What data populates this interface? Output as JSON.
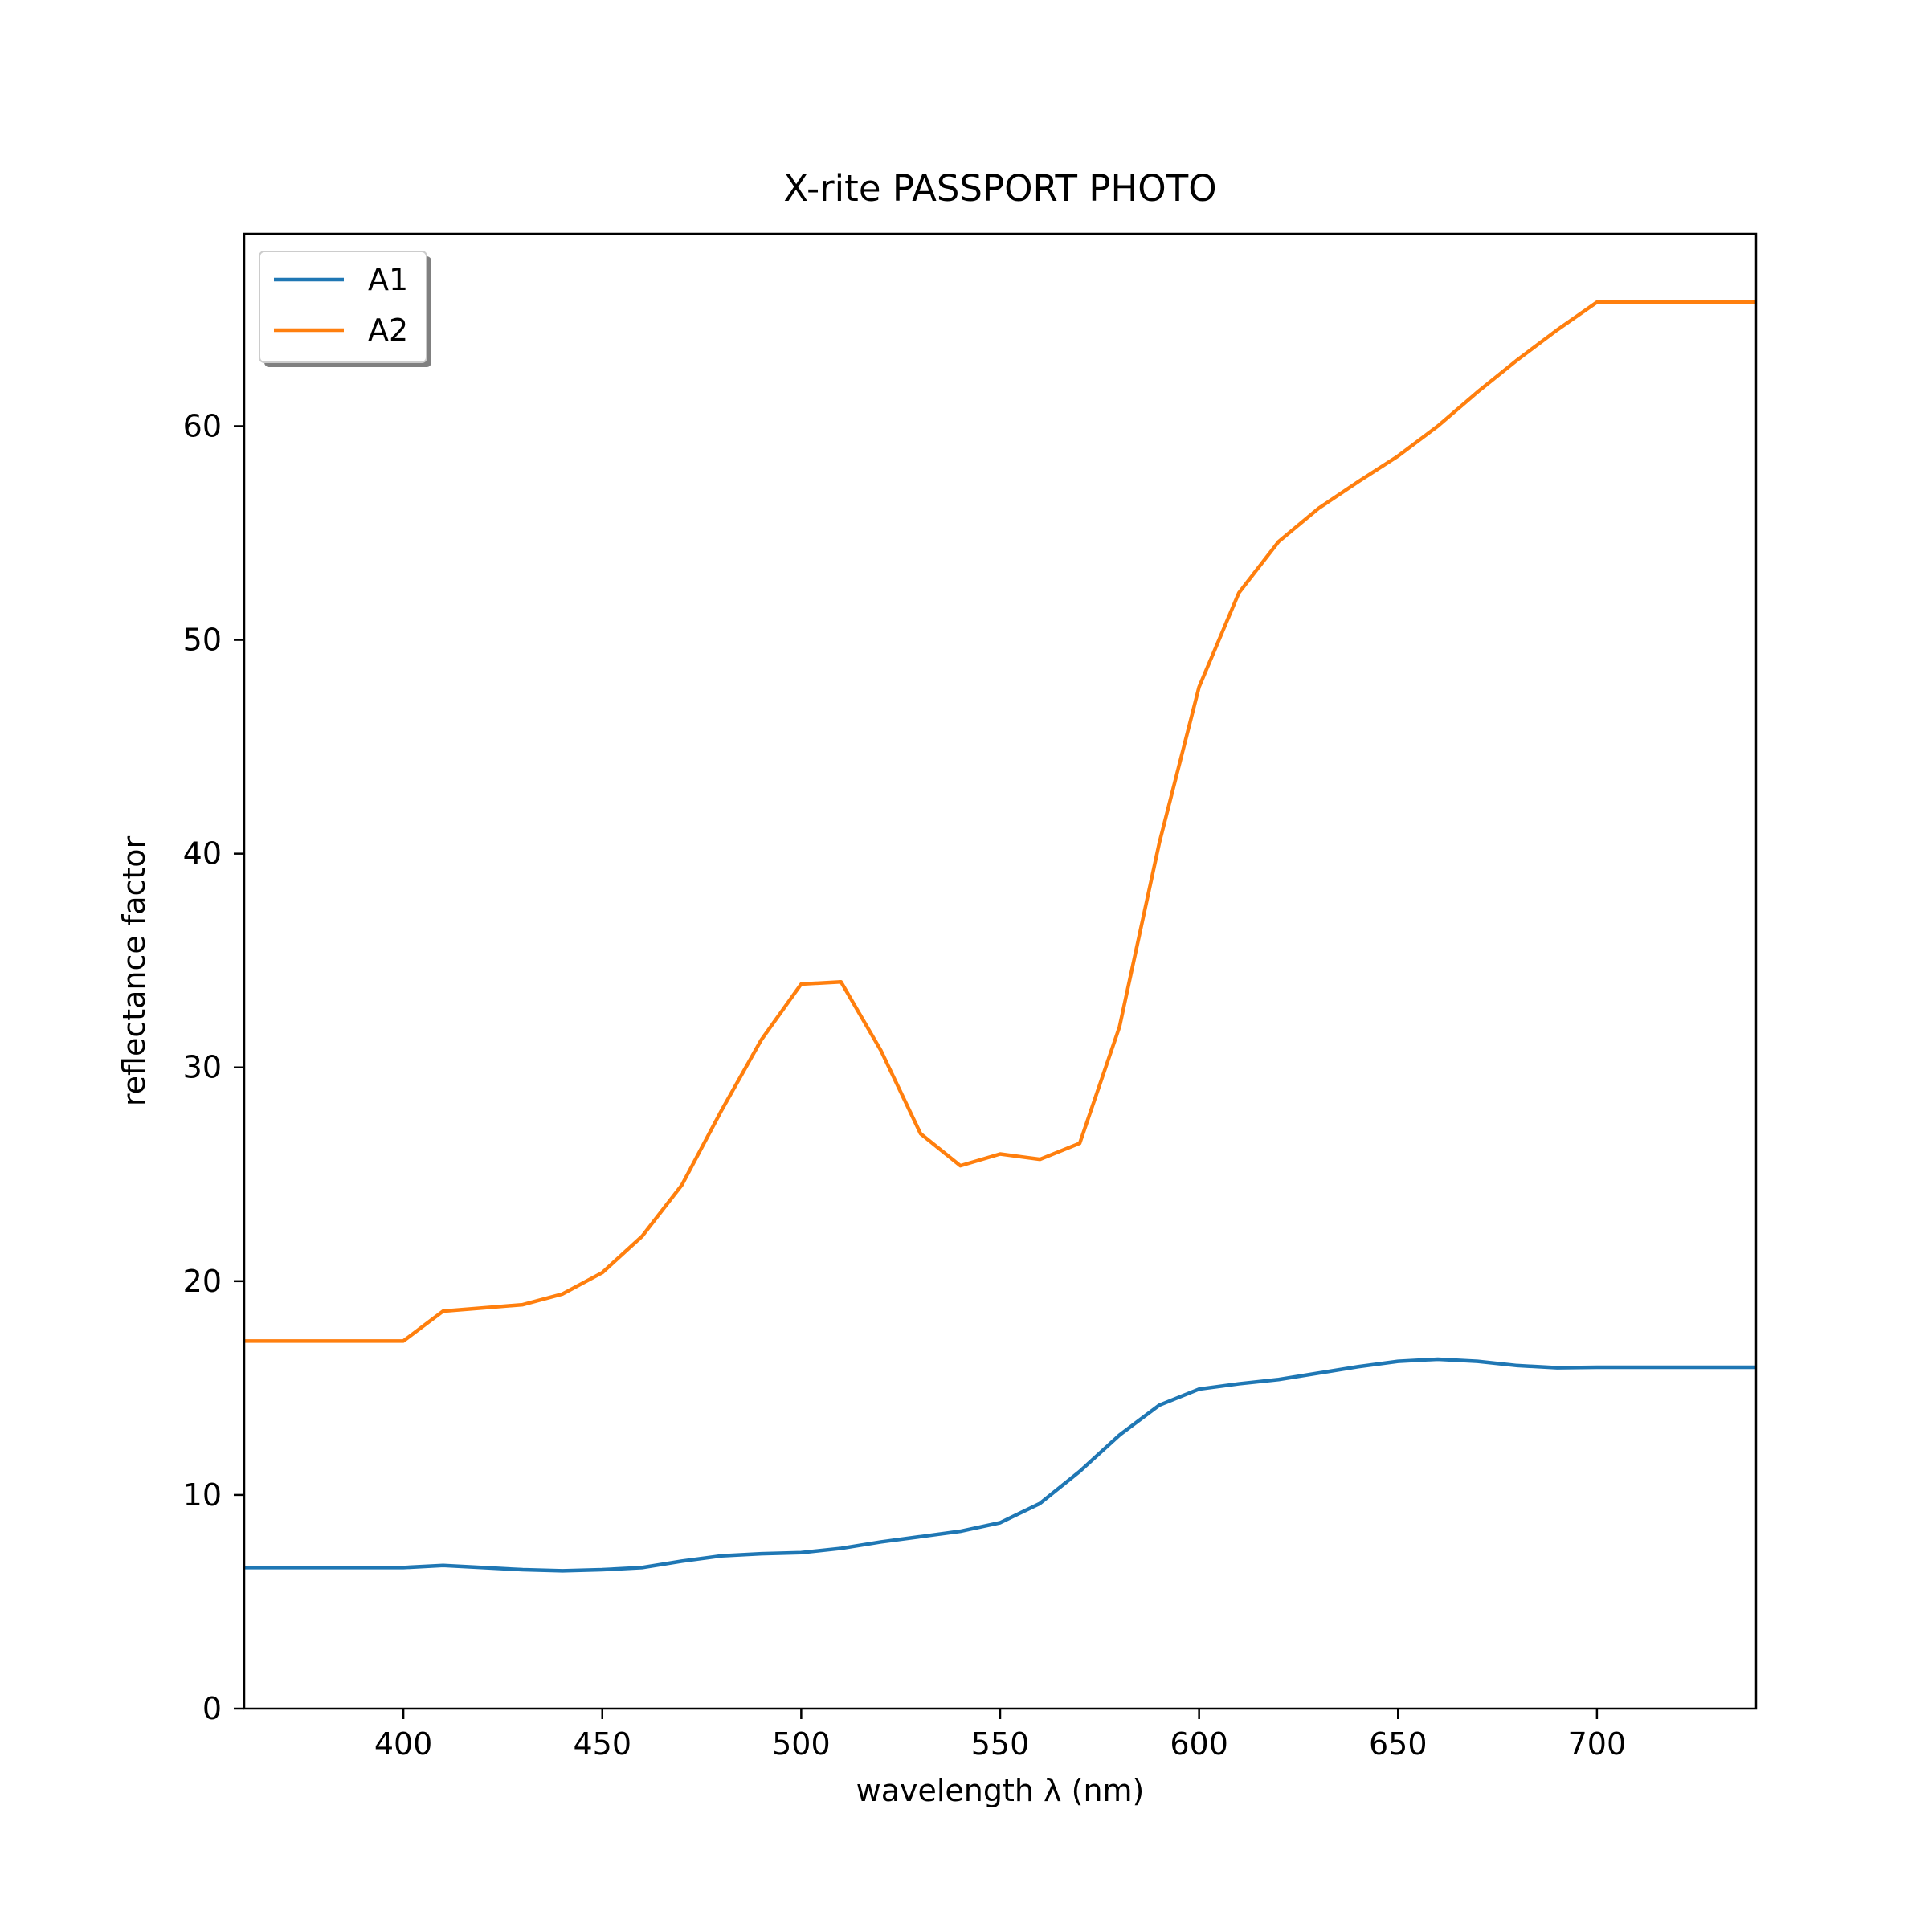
{
  "chart_data": {
    "type": "line",
    "title": "X-rite PASSPORT PHOTO",
    "xlabel": "wavelength λ (nm)",
    "ylabel": "reflectance factor",
    "xlim": [
      360,
      740
    ],
    "ylim": [
      0,
      69
    ],
    "xticks": [
      400,
      450,
      500,
      550,
      600,
      650,
      700
    ],
    "yticks": [
      0,
      10,
      20,
      30,
      40,
      50,
      60
    ],
    "grid": false,
    "legend_position": "upper-left",
    "x": [
      360,
      370,
      380,
      390,
      400,
      410,
      420,
      430,
      440,
      450,
      460,
      470,
      480,
      490,
      500,
      510,
      520,
      530,
      540,
      550,
      560,
      570,
      580,
      590,
      600,
      610,
      620,
      630,
      640,
      650,
      660,
      670,
      680,
      690,
      700,
      710,
      720,
      730,
      740
    ],
    "series": [
      {
        "name": "A1",
        "color": "#1f77b4",
        "values": [
          6.6,
          6.6,
          6.6,
          6.6,
          6.6,
          6.7,
          6.6,
          6.5,
          6.45,
          6.5,
          6.6,
          6.9,
          7.15,
          7.25,
          7.3,
          7.5,
          7.8,
          8.05,
          8.3,
          8.7,
          9.6,
          11.1,
          12.8,
          14.2,
          14.95,
          15.2,
          15.4,
          15.7,
          16.0,
          16.25,
          16.35,
          16.25,
          16.05,
          15.95,
          15.97,
          15.97,
          15.97,
          15.97,
          15.97
        ]
      },
      {
        "name": "A2",
        "color": "#ff7f0e",
        "values": [
          17.2,
          17.2,
          17.2,
          17.2,
          17.2,
          18.6,
          18.75,
          18.9,
          19.4,
          20.4,
          22.1,
          24.5,
          28.0,
          31.3,
          33.9,
          34.0,
          30.8,
          26.9,
          25.4,
          25.95,
          25.7,
          26.45,
          31.9,
          40.5,
          47.8,
          52.2,
          54.6,
          56.15,
          57.4,
          58.6,
          60.0,
          61.6,
          63.1,
          64.5,
          65.8,
          65.8,
          65.8,
          65.8,
          65.8
        ]
      }
    ]
  }
}
